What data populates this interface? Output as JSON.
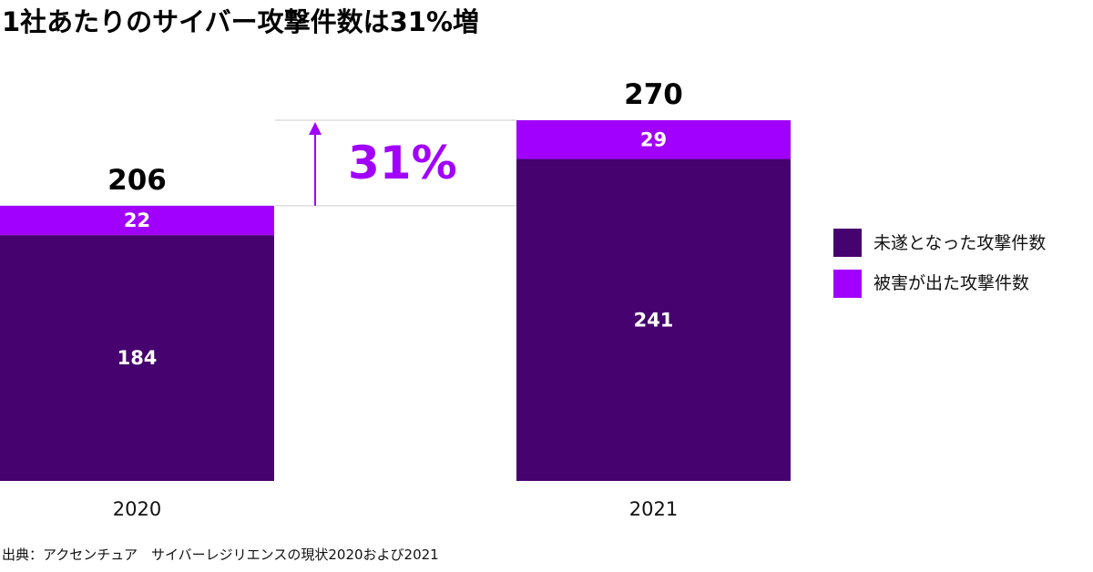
{
  "colors": {
    "unsuccessful": "#46026e",
    "damaged": "#a100ff",
    "growth": "#a100ff",
    "guide": "#cccccc"
  },
  "chart_data": {
    "type": "bar",
    "stacked": true,
    "title": "1社あたりのサイバー攻撃件数は31%増",
    "categories": [
      "2020",
      "2021"
    ],
    "series": [
      {
        "name": "未遂となった攻撃件数",
        "values": [
          184,
          241
        ]
      },
      {
        "name": "被害が出た攻撃件数",
        "values": [
          22,
          29
        ]
      }
    ],
    "totals": [
      "206",
      "270"
    ],
    "annotation": "31%",
    "ylim": [
      0,
      270
    ],
    "xlabel": "",
    "ylabel": "",
    "legend_position": "right"
  },
  "source": "出典：アクセンチュア　サイバーレジリエンスの現状2020および2021"
}
